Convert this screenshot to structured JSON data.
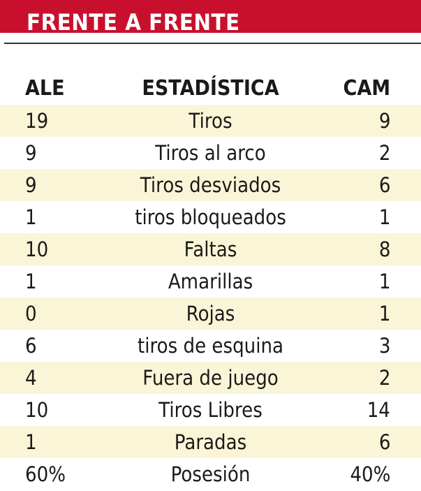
{
  "header": {
    "title": "FRENTE A FRENTE"
  },
  "columns": {
    "left": "ALE",
    "middle": "ESTADÍSTICA",
    "right": "CAM"
  },
  "rows": [
    {
      "left": "19",
      "stat": "Tiros",
      "right": "9"
    },
    {
      "left": "9",
      "stat": "Tiros al arco",
      "right": "2"
    },
    {
      "left": "9",
      "stat": "Tiros desviados",
      "right": "6"
    },
    {
      "left": "1",
      "stat": "tiros bloqueados",
      "right": "1"
    },
    {
      "left": "10",
      "stat": "Faltas",
      "right": "8"
    },
    {
      "left": "1",
      "stat": "Amarillas",
      "right": "1"
    },
    {
      "left": "0",
      "stat": "Rojas",
      "right": "1"
    },
    {
      "left": "6",
      "stat": "tiros de esquina",
      "right": "3"
    },
    {
      "left": "4",
      "stat": "Fuera de juego",
      "right": "2"
    },
    {
      "left": "10",
      "stat": "Tiros Libres",
      "right": "14"
    },
    {
      "left": "1",
      "stat": "Paradas",
      "right": "6"
    },
    {
      "left": "60%",
      "stat": "Posesión",
      "right": "40%"
    }
  ],
  "colors": {
    "banner": "#c8102e",
    "shaded_row": "#fbf5d8",
    "text": "#1a1a1a"
  }
}
